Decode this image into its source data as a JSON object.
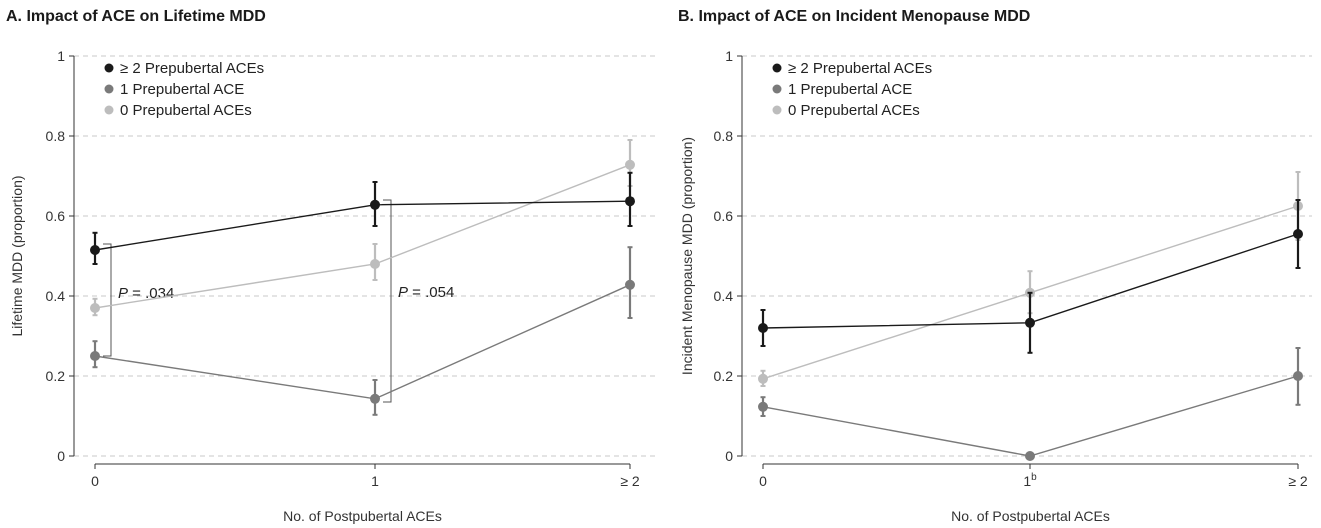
{
  "chart_data": [
    {
      "type": "line",
      "title": "A. Impact of ACE on Lifetime MDD",
      "xlabel": "No. of Postpubertal ACEs",
      "ylabel": "Lifetime MDD (proportion)",
      "categories": [
        "0",
        "1",
        "≥ 2"
      ],
      "ylim": [
        0,
        1
      ],
      "yticks": [
        "0",
        "0.2",
        "0.4",
        "0.6",
        "0.8",
        "1"
      ],
      "grid": "horizontal dashed",
      "legend_position": "top-left",
      "series": [
        {
          "name": "≥ 2 Prepubertal ACEs",
          "color": "#1a1a1a",
          "values": [
            0.515,
            0.628,
            0.637
          ],
          "lower": [
            0.48,
            0.575,
            0.575
          ],
          "upper": [
            0.558,
            0.685,
            0.708
          ]
        },
        {
          "name": "1 Prepubertal ACE",
          "color": "#7a7a7a",
          "values": [
            0.25,
            0.143,
            0.428
          ],
          "lower": [
            0.222,
            0.103,
            0.345
          ],
          "upper": [
            0.287,
            0.19,
            0.522
          ]
        },
        {
          "name": "0 Prepubertal ACEs",
          "color": "#bdbdbd",
          "values": [
            0.37,
            0.48,
            0.728
          ],
          "lower": [
            0.352,
            0.44,
            0.675
          ],
          "upper": [
            0.393,
            0.53,
            0.79
          ]
        }
      ],
      "annotations": [
        {
          "text_pre": "P",
          "text_post": " = .034",
          "x_category": "0",
          "y_from": 0.25,
          "y_to": 0.53
        },
        {
          "text_pre": "P",
          "text_post": " = .054",
          "x_category": "1",
          "y_from": 0.135,
          "y_to": 0.64
        }
      ]
    },
    {
      "type": "line",
      "title": "B. Impact of ACE on Incident Menopause MDD",
      "xlabel": "No. of Postpubertal ACEs",
      "ylabel": "Incident Menopause MDD (proportion)",
      "categories": [
        "0",
        "1",
        "≥ 2"
      ],
      "category_superscripts": [
        "",
        "b",
        ""
      ],
      "ylim": [
        0,
        1
      ],
      "yticks": [
        "0",
        "0.2",
        "0.4",
        "0.6",
        "0.8",
        "1"
      ],
      "grid": "horizontal dashed",
      "legend_position": "top-left",
      "series": [
        {
          "name": "≥ 2 Prepubertal ACEs",
          "color": "#1a1a1a",
          "values": [
            0.32,
            0.333,
            0.555
          ],
          "lower": [
            0.275,
            0.258,
            0.47
          ],
          "upper": [
            0.365,
            0.408,
            0.64
          ]
        },
        {
          "name": "1 Prepubertal ACE",
          "color": "#7a7a7a",
          "values": [
            0.123,
            0.0,
            0.2
          ],
          "lower": [
            0.1,
            null,
            0.128
          ],
          "upper": [
            0.147,
            null,
            0.27
          ]
        },
        {
          "name": "0 Prepubertal ACEs",
          "color": "#bdbdbd",
          "values": [
            0.193,
            0.408,
            0.625
          ],
          "lower": [
            0.175,
            0.357,
            0.54
          ],
          "upper": [
            0.213,
            0.462,
            0.71
          ]
        }
      ]
    }
  ]
}
